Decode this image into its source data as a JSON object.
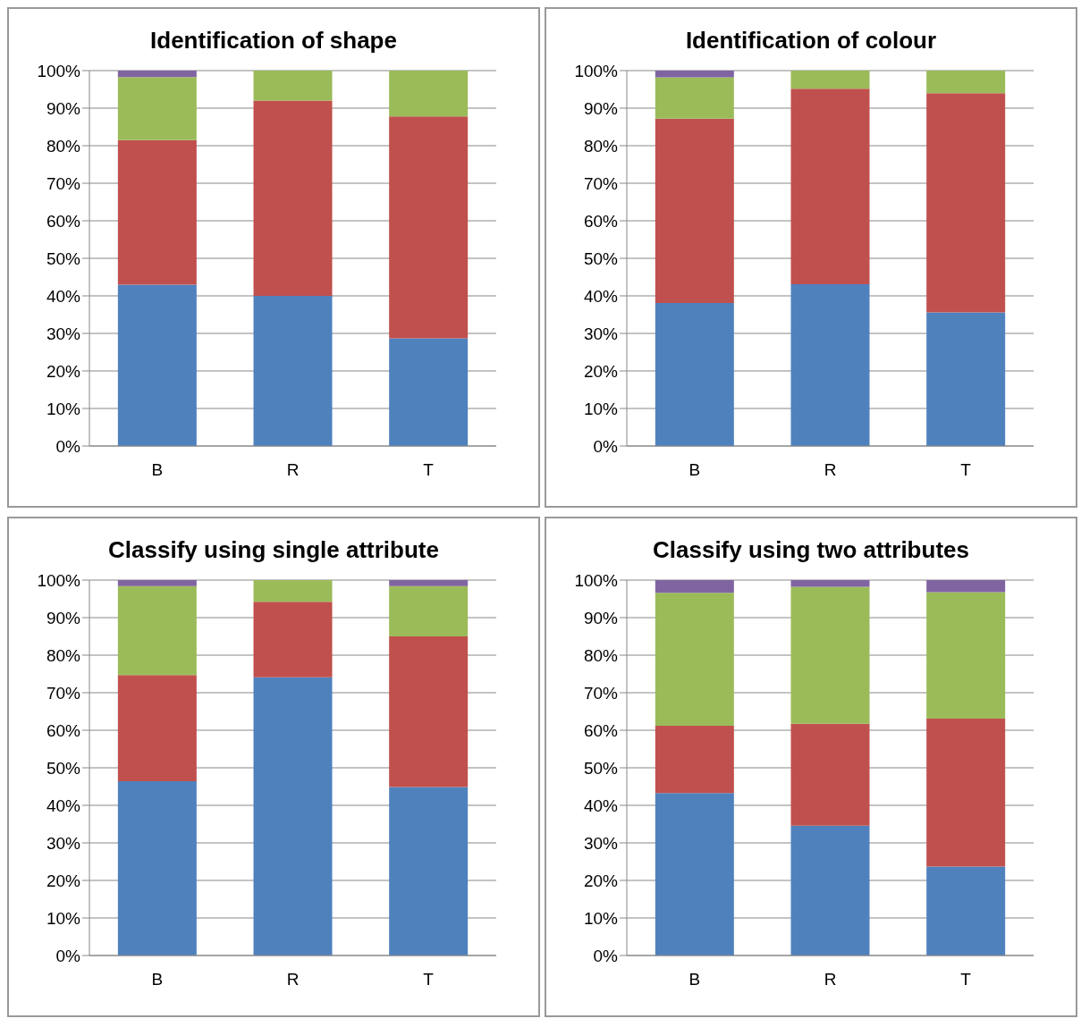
{
  "chart_data": [
    {
      "type": "bar",
      "title": "Identification of shape",
      "categories": [
        "B",
        "R",
        "T"
      ],
      "stacked": true,
      "grid": "y",
      "ylim": [
        0,
        100
      ],
      "yticks": [
        {
          "value": 0,
          "label": "0%"
        },
        {
          "value": 10,
          "label": "10%"
        },
        {
          "value": 20,
          "label": "20%"
        },
        {
          "value": 30,
          "label": "30%"
        },
        {
          "value": 40,
          "label": "40%"
        },
        {
          "value": 50,
          "label": "50%"
        },
        {
          "value": 60,
          "label": "60%"
        },
        {
          "value": 70,
          "label": "70%"
        },
        {
          "value": 80,
          "label": "80%"
        },
        {
          "value": 90,
          "label": "90%"
        },
        {
          "value": 100,
          "label": "100%"
        }
      ],
      "series": [
        {
          "color": "#4f81bd",
          "values": [
            43,
            40,
            28.7
          ]
        },
        {
          "color": "#c0504d",
          "values": [
            38.5,
            52,
            59.1
          ]
        },
        {
          "color": "#9bbb59",
          "values": [
            16.8,
            8,
            12.2
          ]
        },
        {
          "color": "#8064a2",
          "values": [
            1.7,
            0,
            0
          ]
        }
      ]
    },
    {
      "type": "bar",
      "title": "Identification of colour",
      "categories": [
        "B",
        "R",
        "T"
      ],
      "stacked": true,
      "grid": "y",
      "ylim": [
        0,
        100
      ],
      "yticks": [
        {
          "value": 0,
          "label": "0%"
        },
        {
          "value": 10,
          "label": "10%"
        },
        {
          "value": 20,
          "label": "20%"
        },
        {
          "value": 30,
          "label": "30%"
        },
        {
          "value": 40,
          "label": "40%"
        },
        {
          "value": 50,
          "label": "50%"
        },
        {
          "value": 60,
          "label": "60%"
        },
        {
          "value": 70,
          "label": "70%"
        },
        {
          "value": 80,
          "label": "80%"
        },
        {
          "value": 90,
          "label": "90%"
        },
        {
          "value": 100,
          "label": "100%"
        }
      ],
      "series": [
        {
          "color": "#4f81bd",
          "values": [
            38.1,
            43.1,
            35.6
          ]
        },
        {
          "color": "#c0504d",
          "values": [
            49.1,
            52.1,
            58.4
          ]
        },
        {
          "color": "#9bbb59",
          "values": [
            11,
            4.8,
            6
          ]
        },
        {
          "color": "#8064a2",
          "values": [
            1.8,
            0,
            0
          ]
        }
      ]
    },
    {
      "type": "bar",
      "title": "Classify using single attribute",
      "categories": [
        "B",
        "R",
        "T"
      ],
      "stacked": true,
      "grid": "y",
      "ylim": [
        0,
        100
      ],
      "yticks": [
        {
          "value": 0,
          "label": "0%"
        },
        {
          "value": 10,
          "label": "10%"
        },
        {
          "value": 20,
          "label": "20%"
        },
        {
          "value": 30,
          "label": "30%"
        },
        {
          "value": 40,
          "label": "40%"
        },
        {
          "value": 50,
          "label": "50%"
        },
        {
          "value": 60,
          "label": "60%"
        },
        {
          "value": 70,
          "label": "70%"
        },
        {
          "value": 80,
          "label": "80%"
        },
        {
          "value": 90,
          "label": "90%"
        },
        {
          "value": 100,
          "label": "100%"
        }
      ],
      "series": [
        {
          "color": "#4f81bd",
          "values": [
            46.4,
            74.1,
            44.9
          ]
        },
        {
          "color": "#c0504d",
          "values": [
            28.3,
            20.1,
            40.1
          ]
        },
        {
          "color": "#9bbb59",
          "values": [
            23.7,
            5.8,
            13.4
          ]
        },
        {
          "color": "#8064a2",
          "values": [
            1.6,
            0,
            1.6
          ]
        }
      ]
    },
    {
      "type": "bar",
      "title": "Classify using two attributes",
      "categories": [
        "B",
        "R",
        "T"
      ],
      "stacked": true,
      "grid": "y",
      "ylim": [
        0,
        100
      ],
      "yticks": [
        {
          "value": 0,
          "label": "0%"
        },
        {
          "value": 10,
          "label": "10%"
        },
        {
          "value": 20,
          "label": "20%"
        },
        {
          "value": 30,
          "label": "30%"
        },
        {
          "value": 40,
          "label": "40%"
        },
        {
          "value": 50,
          "label": "50%"
        },
        {
          "value": 60,
          "label": "60%"
        },
        {
          "value": 70,
          "label": "70%"
        },
        {
          "value": 80,
          "label": "80%"
        },
        {
          "value": 90,
          "label": "90%"
        },
        {
          "value": 100,
          "label": "100%"
        }
      ],
      "series": [
        {
          "color": "#4f81bd",
          "values": [
            43.3,
            34.6,
            23.7
          ]
        },
        {
          "color": "#c0504d",
          "values": [
            17.9,
            27.1,
            39.4
          ]
        },
        {
          "color": "#9bbb59",
          "values": [
            35.4,
            36.5,
            33.7
          ]
        },
        {
          "color": "#8064a2",
          "values": [
            3.4,
            1.8,
            3.2
          ]
        }
      ]
    }
  ]
}
